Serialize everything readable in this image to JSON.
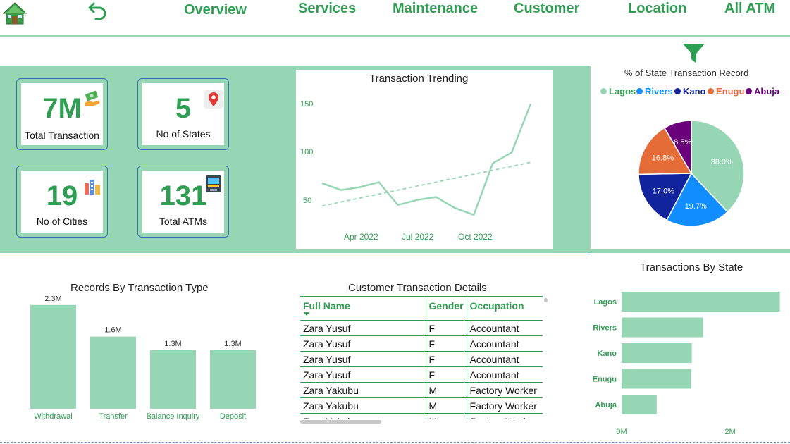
{
  "nav": {
    "items": [
      "Overview",
      "Services",
      "Maintenance",
      "Customer",
      "Location",
      "All ATM"
    ]
  },
  "kpis": [
    {
      "value": "7M",
      "label": "Total Transaction",
      "icon": "money-icon"
    },
    {
      "value": "5",
      "label": "No of States",
      "icon": "map-pin-icon"
    },
    {
      "value": "19",
      "label": "No of Cities",
      "icon": "city-icon"
    },
    {
      "value": "131",
      "label": "Total ATMs",
      "icon": "atm-icon"
    }
  ],
  "trend": {
    "title": "Transaction Trending",
    "y_ticks": [
      "150",
      "100",
      "50"
    ],
    "x_ticks": [
      "Apr 2022",
      "Jul 2022",
      "Oct 2022"
    ]
  },
  "pie": {
    "title": "% of State Transaction Record",
    "legend": [
      "Lagos",
      "Rivers",
      "Kano",
      "Enugu",
      "Abuja"
    ]
  },
  "bars_type": {
    "title": "Records By Transaction Type"
  },
  "table": {
    "title": "Customer Transaction Details",
    "headers": [
      "Full Name",
      "Gender",
      "Occupation"
    ],
    "rows": [
      [
        "Zara Yusuf",
        "F",
        "Accountant"
      ],
      [
        "Zara Yusuf",
        "F",
        "Accountant"
      ],
      [
        "Zara Yusuf",
        "F",
        "Accountant"
      ],
      [
        "Zara Yusuf",
        "F",
        "Accountant"
      ],
      [
        "Zara Yakubu",
        "M",
        "Factory Worker"
      ],
      [
        "Zara Yakubu",
        "M",
        "Factory Worker"
      ],
      [
        "Zara Yakubu",
        "M",
        "Factory Worker"
      ]
    ]
  },
  "bars_state": {
    "title": "Transactions By State",
    "x_ticks": [
      "0M",
      "2M"
    ]
  },
  "chart_data": [
    {
      "type": "line",
      "title": "Transaction Trending",
      "x": [
        "2022-01",
        "2022-02",
        "2022-03",
        "2022-04",
        "2022-05",
        "2022-06",
        "2022-07",
        "2022-08",
        "2022-09",
        "2022-10",
        "2022-11",
        "2022-12"
      ],
      "series": [
        {
          "values": [
            72,
            65,
            68,
            73,
            50,
            55,
            58,
            47,
            40,
            92,
            103,
            152
          ]
        },
        {
          "values": [
            49,
            53,
            57,
            61,
            65,
            69,
            73,
            77,
            81,
            85,
            89,
            93
          ]
        }
      ],
      "ylim": [
        30,
        165
      ],
      "y_ticks": [
        50,
        100,
        150
      ],
      "x_tick_labels": [
        "Apr 2022",
        "Jul 2022",
        "Oct 2022"
      ],
      "grid": false
    },
    {
      "type": "pie",
      "title": "% of State Transaction Record",
      "categories": [
        "Lagos",
        "Rivers",
        "Kano",
        "Enugu",
        "Abuja"
      ],
      "values": [
        38.0,
        19.7,
        17.0,
        16.8,
        8.5
      ],
      "labels": [
        "38.0%",
        "19.7%",
        "17.0%",
        "16.8%",
        "8.5%"
      ],
      "colors": [
        "#96d6b4",
        "#118dff",
        "#12239e",
        "#e66c37",
        "#6b007b"
      ],
      "legend": "top"
    },
    {
      "type": "bar",
      "title": "Records By Transaction Type",
      "categories": [
        "Withdrawal",
        "Transfer",
        "Balance Inquiry",
        "Deposit"
      ],
      "values": [
        2.3,
        1.6,
        1.3,
        1.3
      ],
      "labels": [
        "2.3M",
        "1.6M",
        "1.3M",
        "1.3M"
      ],
      "ylim": [
        0,
        2.5
      ],
      "color": "#96d6b4"
    },
    {
      "type": "bar",
      "orientation": "horizontal",
      "title": "Transactions By State",
      "categories": [
        "Lagos",
        "Rivers",
        "Kano",
        "Enugu",
        "Abuja"
      ],
      "values": [
        2.66,
        1.37,
        1.18,
        1.17,
        0.59
      ],
      "xlim": [
        0,
        2.7
      ],
      "x_ticks": [
        "0M",
        "2M"
      ],
      "color": "#96d6b4"
    }
  ]
}
